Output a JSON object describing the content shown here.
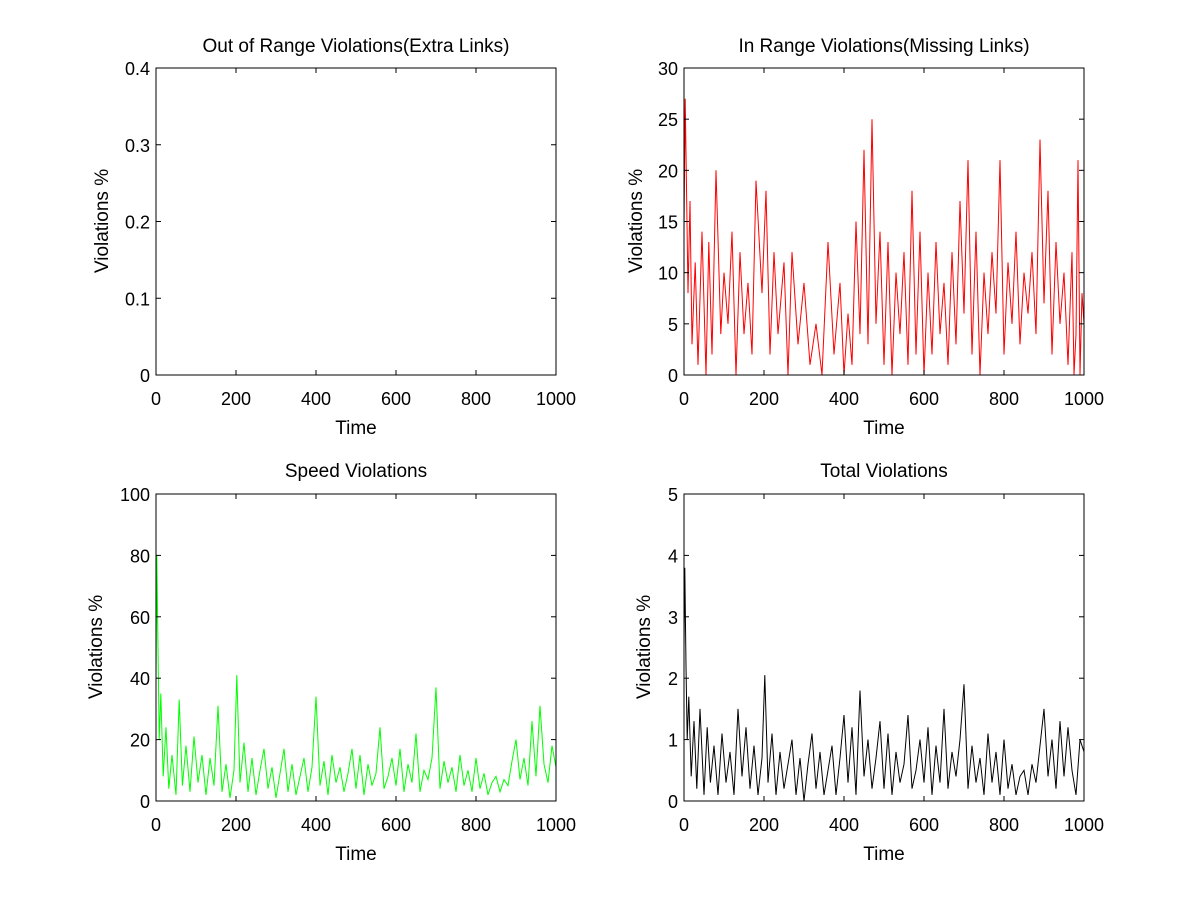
{
  "figure": {
    "background": "#ffffff",
    "axis_color": "#000000"
  },
  "chart_data": [
    {
      "type": "line",
      "title": "Out of Range Violations(Extra Links)",
      "xlabel": "Time",
      "ylabel": "Violations %",
      "xlim": [
        0,
        1000
      ],
      "ylim": [
        0,
        0.4
      ],
      "xticks": [
        0,
        200,
        400,
        600,
        800,
        1000
      ],
      "xtick_labels": [
        "0",
        "200",
        "400",
        "600",
        "800",
        "1000"
      ],
      "yticks": [
        0,
        0.1,
        0.2,
        0.3,
        0.4
      ],
      "ytick_labels": [
        "0",
        "0.1",
        "0.2",
        "0.3",
        "0.4"
      ],
      "grid": false,
      "series": [
        {
          "color": "#0000ff",
          "x": [
            0,
            1000
          ],
          "y": [
            0,
            0
          ]
        }
      ]
    },
    {
      "type": "line",
      "title": "In Range Violations(Missing Links)",
      "xlabel": "Time",
      "ylabel": "Violations %",
      "xlim": [
        0,
        1000
      ],
      "ylim": [
        0,
        30
      ],
      "xticks": [
        0,
        200,
        400,
        600,
        800,
        1000
      ],
      "xtick_labels": [
        "0",
        "200",
        "400",
        "600",
        "800",
        "1000"
      ],
      "yticks": [
        0,
        5,
        10,
        15,
        20,
        25,
        30
      ],
      "ytick_labels": [
        "0",
        "5",
        "10",
        "15",
        "20",
        "25",
        "30"
      ],
      "grid": false,
      "series": [
        {
          "color": "#ff0000",
          "x": [
            0,
            3,
            6,
            10,
            15,
            20,
            28,
            35,
            45,
            55,
            62,
            70,
            80,
            92,
            100,
            110,
            120,
            130,
            140,
            150,
            160,
            170,
            180,
            195,
            205,
            215,
            225,
            235,
            250,
            260,
            270,
            285,
            300,
            315,
            330,
            345,
            360,
            375,
            390,
            400,
            410,
            420,
            430,
            440,
            450,
            460,
            470,
            480,
            490,
            500,
            510,
            520,
            530,
            540,
            550,
            560,
            570,
            580,
            590,
            600,
            610,
            620,
            630,
            640,
            650,
            660,
            670,
            680,
            690,
            700,
            710,
            720,
            730,
            740,
            750,
            760,
            770,
            780,
            790,
            800,
            810,
            820,
            830,
            840,
            850,
            860,
            870,
            880,
            890,
            900,
            910,
            920,
            930,
            940,
            950,
            960,
            970,
            975,
            980,
            985,
            990,
            995,
            1000
          ],
          "y": [
            14,
            27,
            19,
            8,
            17,
            3,
            11,
            1,
            14,
            0,
            13,
            2,
            20,
            4,
            10,
            5,
            14,
            0,
            12,
            4,
            9,
            2,
            19,
            8,
            18,
            2,
            12,
            4,
            11,
            0,
            12,
            3,
            9,
            1,
            5,
            0,
            13,
            2,
            9,
            0,
            6,
            1,
            15,
            4,
            22,
            3,
            25,
            5,
            14,
            1,
            13,
            0,
            10,
            4,
            12,
            1,
            18,
            2,
            14,
            0,
            10,
            2,
            13,
            4,
            9,
            1,
            12,
            3,
            17,
            6,
            21,
            2,
            14,
            0,
            10,
            4,
            12,
            6,
            21,
            2,
            11,
            5,
            14,
            3,
            10,
            6,
            12,
            4,
            23,
            7,
            18,
            2,
            13,
            5,
            10,
            1,
            12,
            0,
            4,
            21,
            0,
            8,
            5
          ]
        }
      ]
    },
    {
      "type": "line",
      "title": "Speed Violations",
      "xlabel": "Time",
      "ylabel": "Violations %",
      "xlim": [
        0,
        1000
      ],
      "ylim": [
        0,
        100
      ],
      "xticks": [
        0,
        200,
        400,
        600,
        800,
        1000
      ],
      "xtick_labels": [
        "0",
        "200",
        "400",
        "600",
        "800",
        "1000"
      ],
      "yticks": [
        0,
        20,
        40,
        60,
        80,
        100
      ],
      "ytick_labels": [
        "0",
        "20",
        "40",
        "60",
        "80",
        "100"
      ],
      "grid": false,
      "series": [
        {
          "color": "#00ff00",
          "x": [
            0,
            2,
            5,
            8,
            12,
            18,
            25,
            32,
            40,
            50,
            58,
            66,
            75,
            85,
            95,
            105,
            115,
            125,
            135,
            145,
            155,
            165,
            175,
            185,
            195,
            202,
            210,
            220,
            230,
            240,
            250,
            260,
            270,
            280,
            290,
            300,
            310,
            320,
            330,
            340,
            350,
            360,
            370,
            380,
            390,
            400,
            410,
            420,
            430,
            440,
            450,
            460,
            470,
            480,
            490,
            500,
            510,
            520,
            530,
            540,
            550,
            560,
            570,
            580,
            590,
            600,
            610,
            620,
            630,
            640,
            650,
            660,
            670,
            680,
            690,
            700,
            710,
            720,
            730,
            740,
            750,
            760,
            770,
            780,
            790,
            800,
            810,
            820,
            830,
            840,
            850,
            860,
            870,
            880,
            890,
            900,
            910,
            920,
            930,
            940,
            950,
            960,
            970,
            980,
            990,
            1000
          ],
          "y": [
            40,
            80,
            50,
            20,
            35,
            8,
            24,
            4,
            15,
            2,
            33,
            5,
            18,
            3,
            21,
            6,
            15,
            2,
            14,
            5,
            31,
            3,
            12,
            1,
            10,
            41,
            6,
            19,
            3,
            14,
            2,
            10,
            17,
            4,
            11,
            1,
            9,
            17,
            3,
            12,
            2,
            8,
            14,
            3,
            11,
            34,
            5,
            13,
            2,
            15,
            6,
            11,
            3,
            9,
            17,
            4,
            15,
            2,
            12,
            5,
            9,
            24,
            4,
            8,
            14,
            5,
            17,
            3,
            12,
            6,
            22,
            3,
            10,
            7,
            14,
            37,
            4,
            13,
            6,
            11,
            3,
            15,
            5,
            10,
            3,
            14,
            4,
            9,
            2,
            6,
            8,
            3,
            7,
            5,
            13,
            20,
            7,
            14,
            5,
            26,
            8,
            31,
            12,
            6,
            18,
            11
          ]
        }
      ]
    },
    {
      "type": "line",
      "title": "Total Violations",
      "xlabel": "Time",
      "ylabel": "Violations %",
      "xlim": [
        0,
        1000
      ],
      "ylim": [
        0,
        5
      ],
      "xticks": [
        0,
        200,
        400,
        600,
        800,
        1000
      ],
      "xtick_labels": [
        "0",
        "200",
        "400",
        "600",
        "800",
        "1000"
      ],
      "yticks": [
        0,
        1,
        2,
        3,
        4,
        5
      ],
      "ytick_labels": [
        "0",
        "1",
        "2",
        "3",
        "4",
        "5"
      ],
      "grid": false,
      "series": [
        {
          "color": "#000000",
          "x": [
            0,
            2,
            5,
            8,
            12,
            18,
            25,
            32,
            40,
            50,
            58,
            66,
            75,
            85,
            95,
            105,
            115,
            125,
            135,
            145,
            155,
            165,
            175,
            185,
            195,
            202,
            210,
            220,
            230,
            240,
            250,
            260,
            270,
            280,
            290,
            300,
            310,
            320,
            330,
            340,
            350,
            360,
            370,
            380,
            390,
            400,
            410,
            420,
            430,
            440,
            450,
            460,
            470,
            480,
            490,
            500,
            510,
            520,
            530,
            540,
            550,
            560,
            570,
            580,
            590,
            600,
            610,
            620,
            630,
            640,
            650,
            660,
            670,
            680,
            690,
            700,
            710,
            720,
            730,
            740,
            750,
            760,
            770,
            780,
            790,
            800,
            810,
            820,
            830,
            840,
            850,
            860,
            870,
            880,
            890,
            900,
            910,
            920,
            930,
            940,
            950,
            960,
            970,
            980,
            990,
            1000
          ],
          "y": [
            2.5,
            3.8,
            2.2,
            1.0,
            1.7,
            0.4,
            1.3,
            0.2,
            1.5,
            0.1,
            1.2,
            0.3,
            0.9,
            0.1,
            1.1,
            0.3,
            0.8,
            0.1,
            1.5,
            0.4,
            1.2,
            0.2,
            0.9,
            0.1,
            0.7,
            2.05,
            0.3,
            1.1,
            0.1,
            0.8,
            0.2,
            0.6,
            1.0,
            0.1,
            0.7,
            0.0,
            0.6,
            1.1,
            0.2,
            0.8,
            0.1,
            0.5,
            0.9,
            0.1,
            0.7,
            1.4,
            0.3,
            1.2,
            0.1,
            1.8,
            0.4,
            1.0,
            0.2,
            0.7,
            1.3,
            0.2,
            1.1,
            0.1,
            0.8,
            0.3,
            0.6,
            1.4,
            0.2,
            0.5,
            1.0,
            0.3,
            1.2,
            0.1,
            0.9,
            0.3,
            1.5,
            0.2,
            0.8,
            0.4,
            1.0,
            1.9,
            0.2,
            0.9,
            0.3,
            0.7,
            0.1,
            1.1,
            0.3,
            0.8,
            0.1,
            1.0,
            0.2,
            0.6,
            0.1,
            0.4,
            0.5,
            0.1,
            0.6,
            0.3,
            0.9,
            1.5,
            0.4,
            1.0,
            0.2,
            1.3,
            0.4,
            1.2,
            0.5,
            0.1,
            1.0,
            0.8
          ]
        }
      ]
    }
  ]
}
